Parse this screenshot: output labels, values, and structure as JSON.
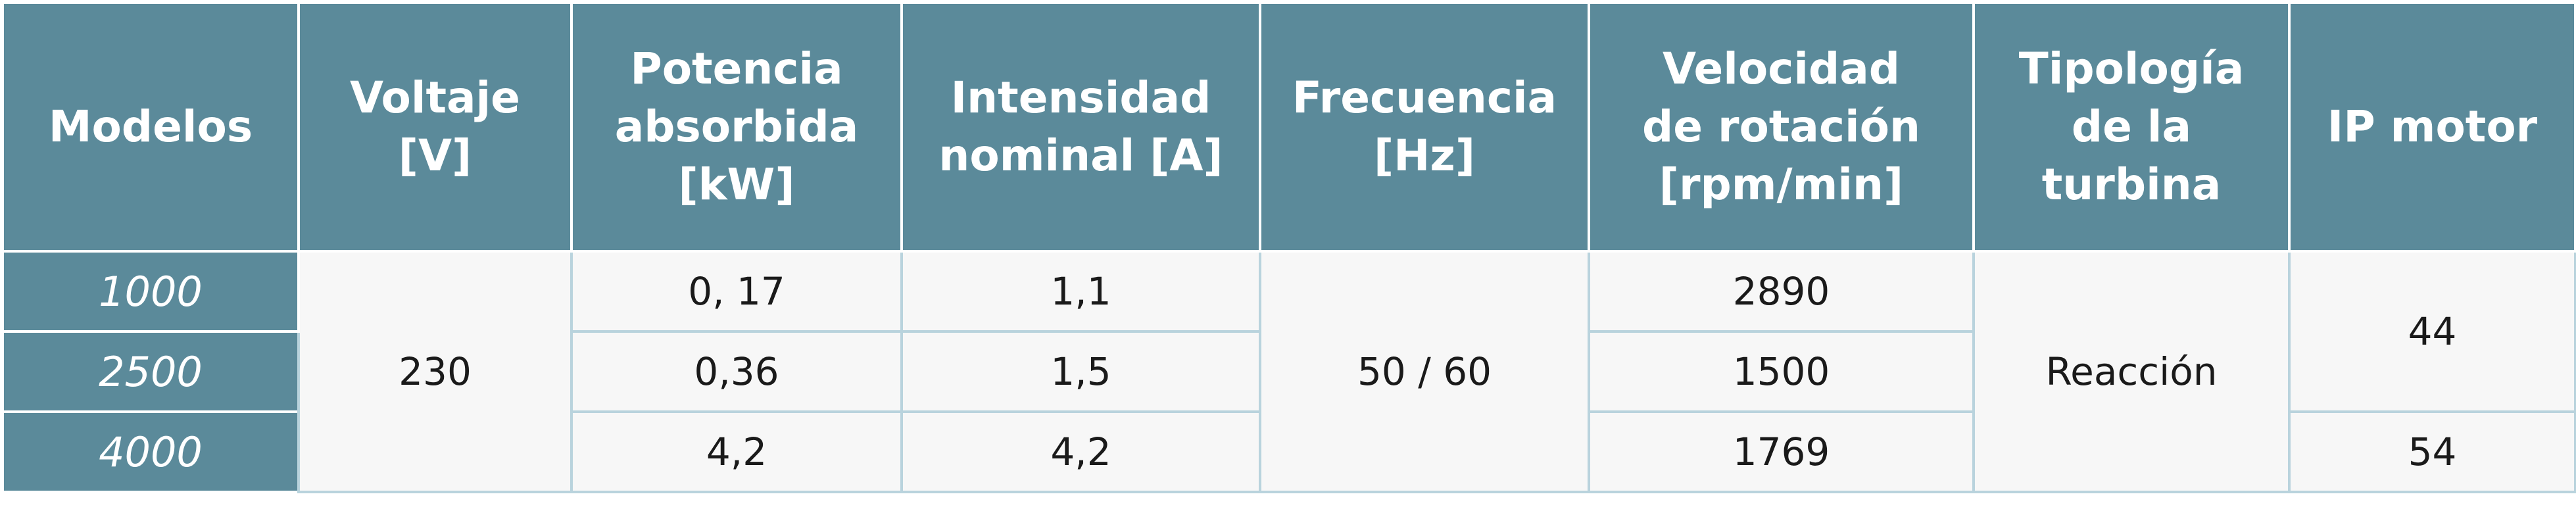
{
  "table": {
    "header": [
      [
        "Modelos"
      ],
      [
        "Voltaje",
        "[V]"
      ],
      [
        "Potencia",
        "absorbida",
        "[kW]"
      ],
      [
        "Intensidad",
        "nominal [A]"
      ],
      [
        "Frecuencia",
        "[Hz]"
      ],
      [
        "Velocidad",
        "de rotación",
        "[rpm/min]"
      ],
      [
        "Tipología",
        "de la",
        "turbina"
      ],
      [
        "IP motor"
      ]
    ],
    "rows": [
      [
        "1000",
        "230",
        "0, 17",
        "1,1",
        "50 / 60",
        "2890",
        "Reacción",
        "44"
      ],
      [
        "2500",
        "0,36",
        "1,5",
        "1500"
      ],
      [
        "4000",
        "4,2",
        "4,2",
        "1769",
        "54"
      ]
    ]
  }
}
